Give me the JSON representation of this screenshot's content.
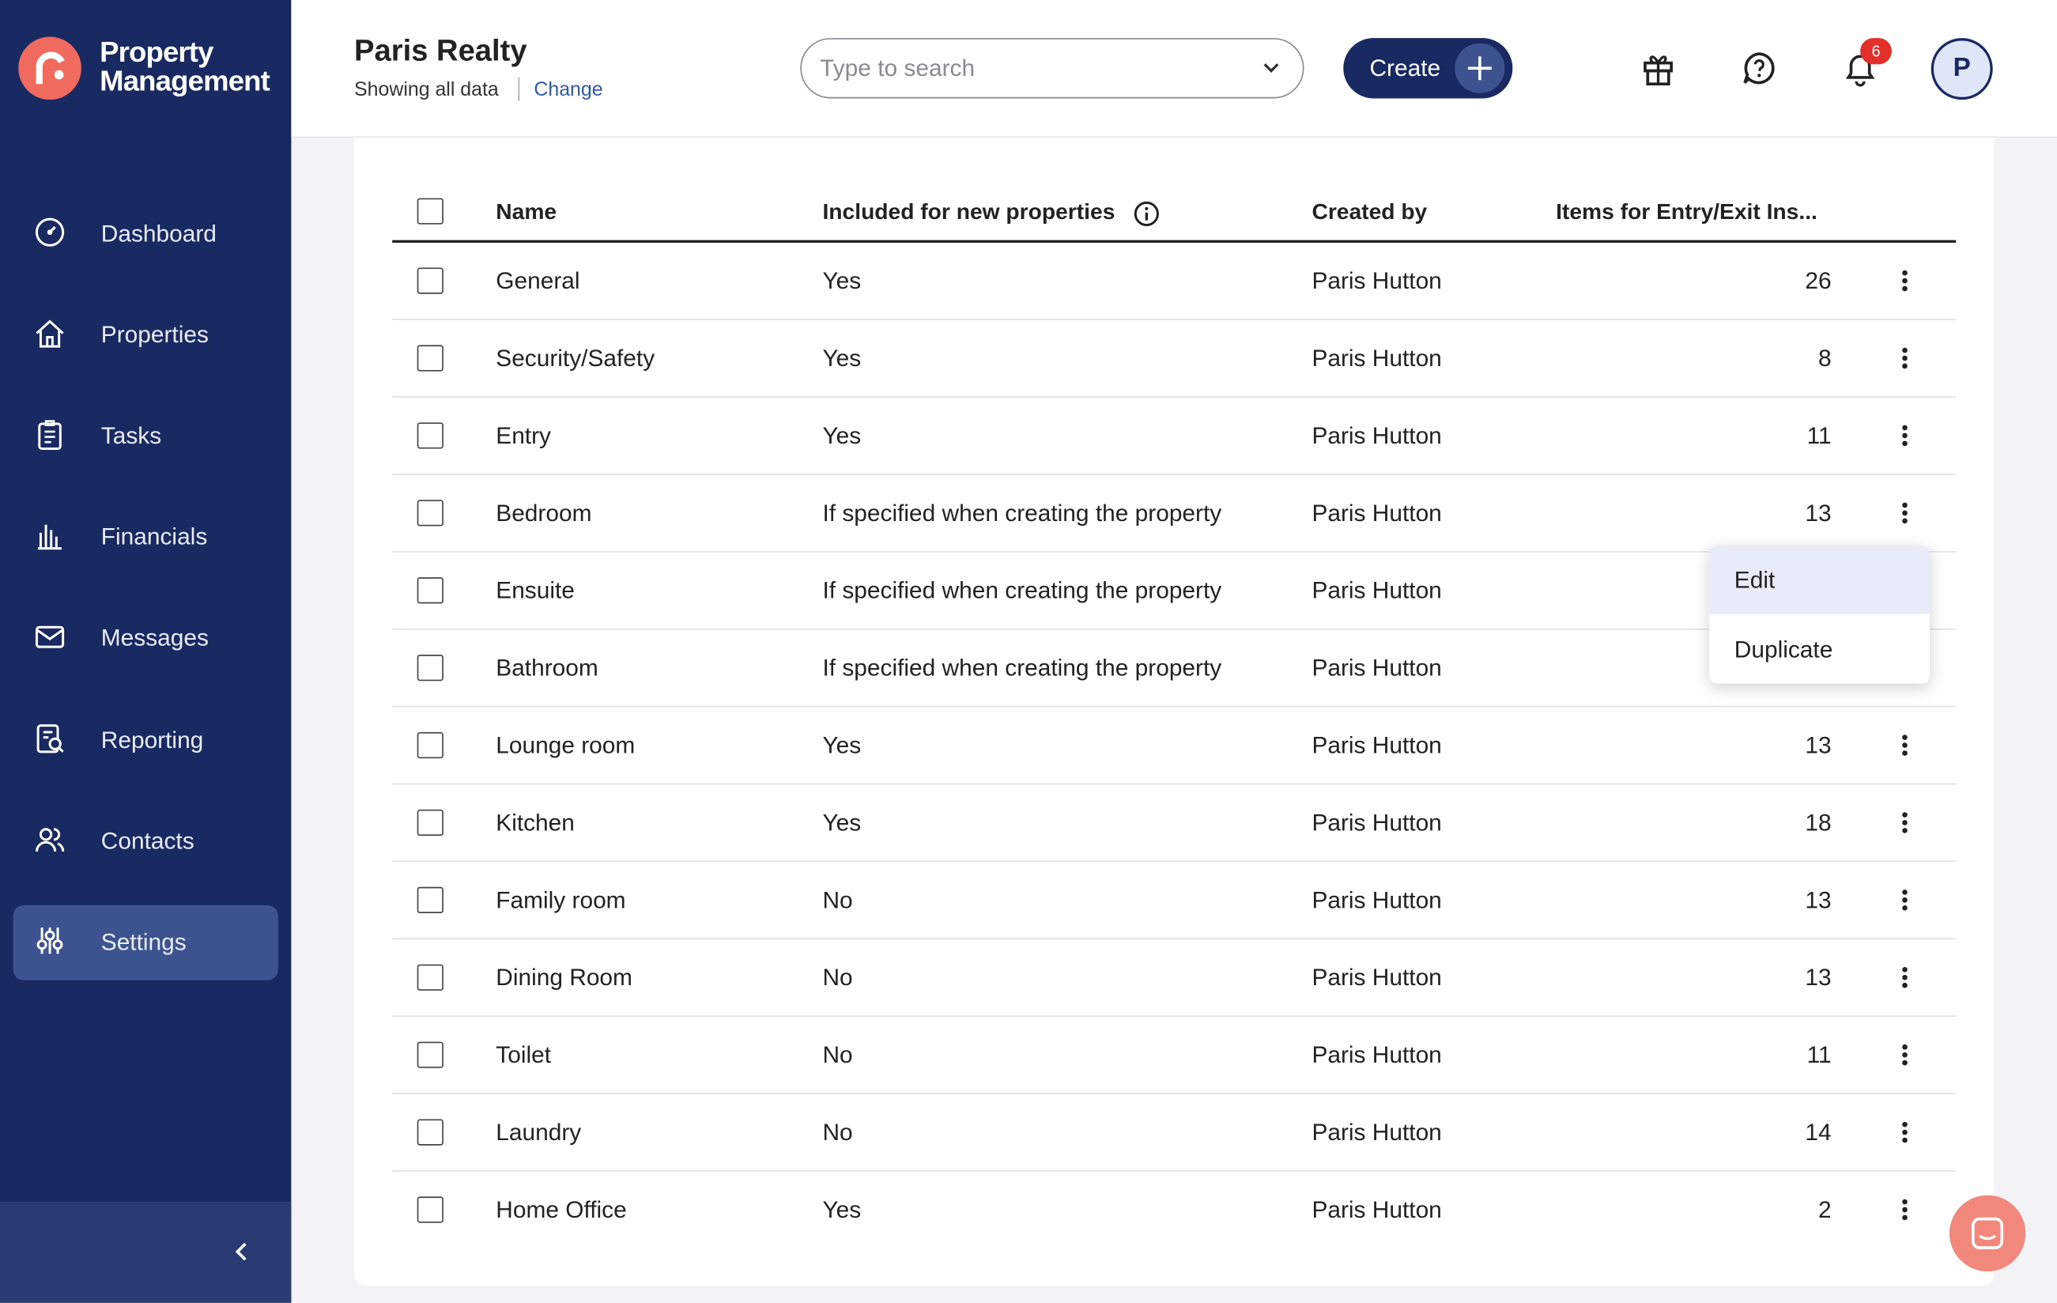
{
  "brand": {
    "line1": "Property",
    "line2": "Management"
  },
  "nav": [
    "Dashboard",
    "Properties",
    "Tasks",
    "Financials",
    "Messages",
    "Reporting",
    "Contacts",
    "Settings"
  ],
  "header": {
    "title": "Paris Realty",
    "subtitle": "Showing all data",
    "change": "Change"
  },
  "search": {
    "placeholder": "Type to search"
  },
  "create": "Create",
  "notifications": 6,
  "avatar": "P",
  "table": {
    "columns": [
      "Name",
      "Included for new properties",
      "Created by",
      "Items for Entry/Exit Ins..."
    ],
    "rows": [
      [
        "General",
        "Yes",
        "Paris Hutton",
        26
      ],
      [
        "Security/Safety",
        "Yes",
        "Paris Hutton",
        8
      ],
      [
        "Entry",
        "Yes",
        "Paris Hutton",
        11
      ],
      [
        "Bedroom",
        "If specified when creating the property",
        "Paris Hutton",
        13
      ],
      [
        "Ensuite",
        "If specified when creating the property",
        "Paris Hutton"
      ],
      [
        "Bathroom",
        "If specified when creating the property",
        "Paris Hutton"
      ],
      [
        "Lounge room",
        "Yes",
        "Paris Hutton",
        13
      ],
      [
        "Kitchen",
        "Yes",
        "Paris Hutton",
        18
      ],
      [
        "Family room",
        "No",
        "Paris Hutton",
        13
      ],
      [
        "Dining Room",
        "No",
        "Paris Hutton",
        13
      ],
      [
        "Toilet",
        "No",
        "Paris Hutton",
        11
      ],
      [
        "Laundry",
        "No",
        "Paris Hutton",
        14
      ],
      [
        "Home Office",
        "Yes",
        "Paris Hutton",
        2
      ]
    ]
  },
  "menu": [
    "Edit",
    "Duplicate"
  ]
}
